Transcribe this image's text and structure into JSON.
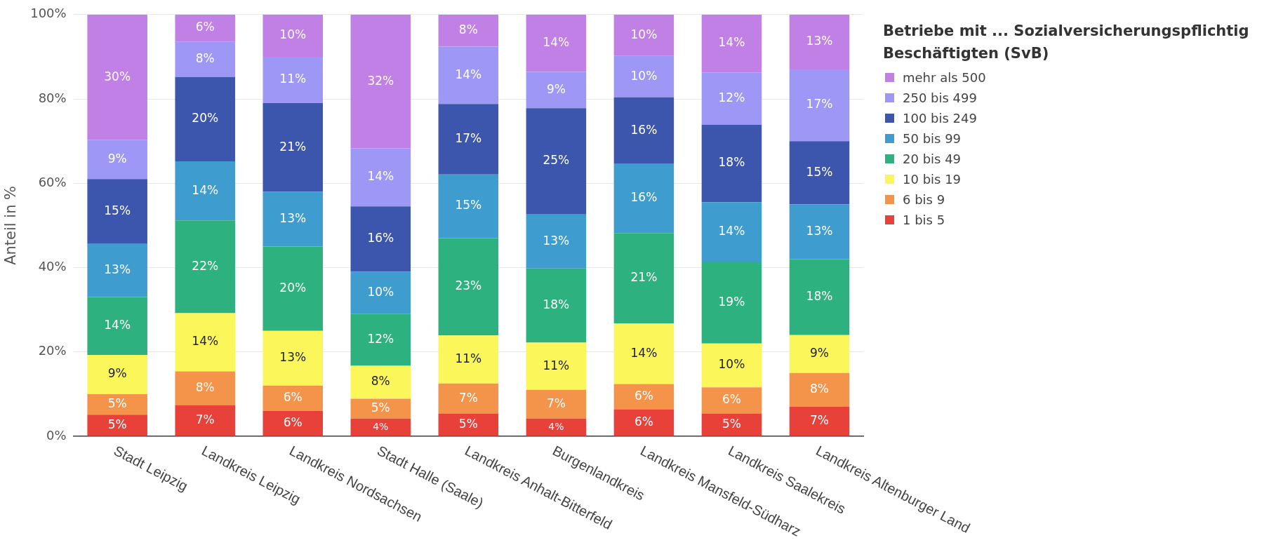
{
  "chart_data": {
    "type": "bar",
    "stacked": true,
    "ylabel": "Anteil in %",
    "legend_title": "Betriebe mit ... Sozialversicherungspflichtig Beschäftigten (SvB)",
    "legend": "right",
    "grid": "y",
    "categories": [
      "Stadt Leipzig",
      "Landkreis Leipzig",
      "Landkreis Nordsachsen",
      "Stadt Halle (Saale)",
      "Landkreis Anhalt-Bitterfeld",
      "Burgenlandkreis",
      "Landkreis Mansfeld-Südharz",
      "Landkreis Saalekreis",
      "Landkreis Altenburger Land"
    ],
    "ylim": [
      0,
      100
    ],
    "yticks": [
      {
        "value": 0,
        "label": "0%"
      },
      {
        "value": 20,
        "label": "20%"
      },
      {
        "value": 40,
        "label": "40%"
      },
      {
        "value": 60,
        "label": "60%"
      },
      {
        "value": 80,
        "label": "80%"
      },
      {
        "value": 100,
        "label": "100%"
      }
    ],
    "series": [
      {
        "name": "1 bis 5",
        "color": "#e8413a",
        "values": [
          5.1,
          7.4,
          6,
          4.2,
          5.4,
          4.2,
          6.4,
          5.4,
          7
        ],
        "value_labels": [
          "5%",
          "7%",
          "6%",
          "4%",
          "5%",
          "4%",
          "6%",
          "5%",
          "7%"
        ]
      },
      {
        "name": "6 bis 9",
        "color": "#f4944a",
        "values": [
          4.9,
          8,
          6,
          4.7,
          7.1,
          6.8,
          6,
          6.2,
          8
        ],
        "value_labels": [
          "5%",
          "8%",
          "6%",
          "5%",
          "7%",
          "7%",
          "6%",
          "6%",
          "8%"
        ]
      },
      {
        "name": "10 bis 19",
        "color": "#fbf659",
        "values": [
          9.3,
          13.8,
          13,
          7.8,
          11.4,
          11.2,
          14.4,
          10.4,
          9
        ],
        "value_labels": [
          "9%",
          "14%",
          "13%",
          "8%",
          "11%",
          "11%",
          "14%",
          "10%",
          "9%"
        ]
      },
      {
        "name": "20 bis 49",
        "color": "#2db17e",
        "values": [
          13.7,
          22,
          20,
          12.3,
          23.1,
          17.6,
          21.4,
          19.4,
          18
        ],
        "value_labels": [
          "14%",
          "22%",
          "20%",
          "12%",
          "23%",
          "18%",
          "21%",
          "19%",
          "18%"
        ]
      },
      {
        "name": "50 bis 99",
        "color": "#3e9ccf",
        "values": [
          12.6,
          14,
          13,
          10,
          15.1,
          12.8,
          16.4,
          14.1,
          13
        ],
        "value_labels": [
          "13%",
          "14%",
          "13%",
          "10%",
          "15%",
          "13%",
          "16%",
          "14%",
          "13%"
        ]
      },
      {
        "name": "100 bis 249",
        "color": "#3c56ad",
        "values": [
          15.4,
          20,
          21,
          15.5,
          16.7,
          25.2,
          15.8,
          18.4,
          15
        ],
        "value_labels": [
          "15%",
          "20%",
          "21%",
          "16%",
          "17%",
          "25%",
          "16%",
          "18%",
          "15%"
        ]
      },
      {
        "name": "250 bis 499",
        "color": "#9d98f6",
        "values": [
          9.3,
          8.4,
          11,
          13.8,
          13.6,
          8.6,
          9.8,
          12.4,
          17
        ],
        "value_labels": [
          "9%",
          "8%",
          "11%",
          "14%",
          "14%",
          "9%",
          "10%",
          "12%",
          "17%"
        ]
      },
      {
        "name": "mehr als 500",
        "color": "#c180e6",
        "values": [
          29.7,
          6.4,
          10,
          31.7,
          7.6,
          13.6,
          9.8,
          13.7,
          13
        ],
        "value_labels": [
          "30%",
          "6%",
          "10%",
          "32%",
          "8%",
          "14%",
          "10%",
          "14%",
          "13%"
        ]
      }
    ]
  }
}
